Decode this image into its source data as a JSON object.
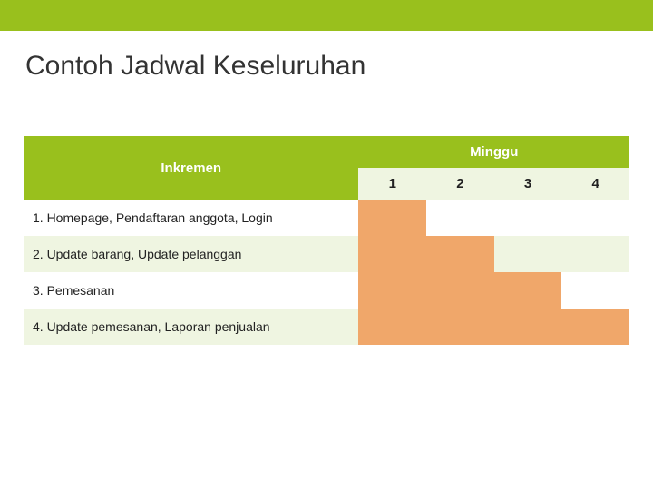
{
  "title": "Contoh Jadwal Keseluruhan",
  "table": {
    "inkremen_label": "Inkremen",
    "minggu_label": "Minggu",
    "weeks": [
      "1",
      "2",
      "3",
      "4"
    ],
    "rows": [
      {
        "label": "1.  Homepage, Pendaftaran anggota, Login",
        "fills": [
          true,
          false,
          false,
          false
        ]
      },
      {
        "label": "2.  Update barang, Update pelanggan",
        "fills": [
          true,
          true,
          false,
          false
        ]
      },
      {
        "label": "3.  Pemesanan",
        "fills": [
          true,
          true,
          true,
          false
        ]
      },
      {
        "label": "4.  Update pemesanan, Laporan penjualan",
        "fills": [
          true,
          true,
          true,
          true
        ]
      }
    ]
  },
  "colors": {
    "top_bar": "#99c01d",
    "header_green": "#99c01d",
    "week_row_bg": "#eff5e1",
    "task_bg_even": "#ffffff",
    "task_bg_odd": "#eff5e1",
    "fill_orange": "#f0a76a",
    "empty_even": "#ffffff",
    "empty_odd": "#eff5e1",
    "title_color": "#333333"
  }
}
